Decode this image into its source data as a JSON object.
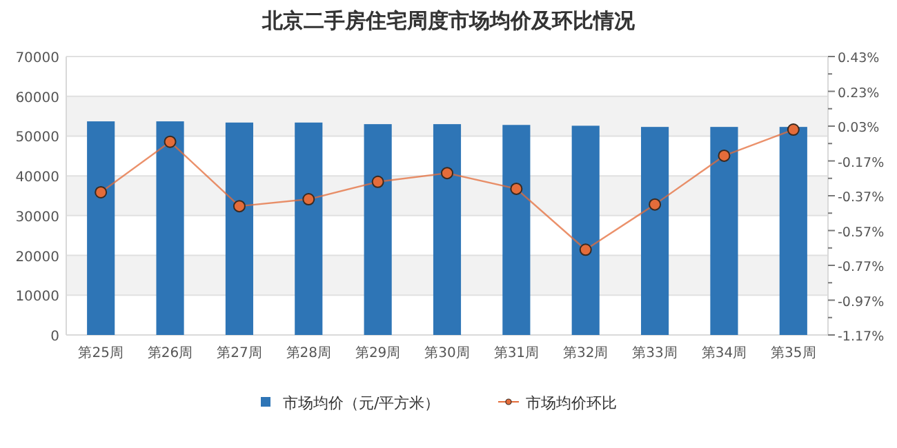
{
  "chart_data": {
    "type": "bar",
    "title": "北京二手房住宅周度市场均价及环比情况",
    "categories": [
      "第25周",
      "第26周",
      "第27周",
      "第28周",
      "第29周",
      "第30周",
      "第31周",
      "第32周",
      "第33周",
      "第34周",
      "第35周"
    ],
    "series": [
      {
        "name": "市场均价（元/平方米）",
        "color": "#2e75b6",
        "values": [
          53700,
          53700,
          53400,
          53400,
          53000,
          53000,
          52800,
          52600,
          52300,
          52300,
          52300
        ]
      },
      {
        "name": "市场均价环比",
        "type": "line",
        "axis": "y2",
        "color": "#e46c3a",
        "marker": "circle",
        "values": [
          -0.35,
          -0.06,
          -0.43,
          -0.39,
          -0.29,
          -0.24,
          -0.33,
          -0.68,
          -0.42,
          -0.14,
          0.01
        ]
      }
    ],
    "ylim": [
      0,
      70000
    ],
    "yticks": [
      0,
      10000,
      20000,
      30000,
      40000,
      50000,
      60000,
      70000
    ],
    "y2lim": [
      -1.17,
      0.43
    ],
    "y2ticks": [
      {
        "value": 0.43,
        "label": "0.43%"
      },
      {
        "value": 0.33,
        "label": null
      },
      {
        "value": 0.23,
        "label": "0.23%"
      },
      {
        "value": 0.13,
        "label": null
      },
      {
        "value": 0.03,
        "label": "0.03%"
      },
      {
        "value": -0.07,
        "label": null
      },
      {
        "value": -0.17,
        "label": "-0.17%"
      },
      {
        "value": -0.27,
        "label": null
      },
      {
        "value": -0.37,
        "label": "-0.37%"
      },
      {
        "value": -0.47,
        "label": null
      },
      {
        "value": -0.57,
        "label": "-0.57%"
      },
      {
        "value": -0.67,
        "label": null
      },
      {
        "value": -0.77,
        "label": "-0.77%"
      },
      {
        "value": -0.87,
        "label": null
      },
      {
        "value": -0.97,
        "label": "-0.97%"
      },
      {
        "value": -1.07,
        "label": null
      },
      {
        "value": -1.17,
        "label": "-1.17%"
      }
    ],
    "grid": "y",
    "legend": "bottom"
  }
}
